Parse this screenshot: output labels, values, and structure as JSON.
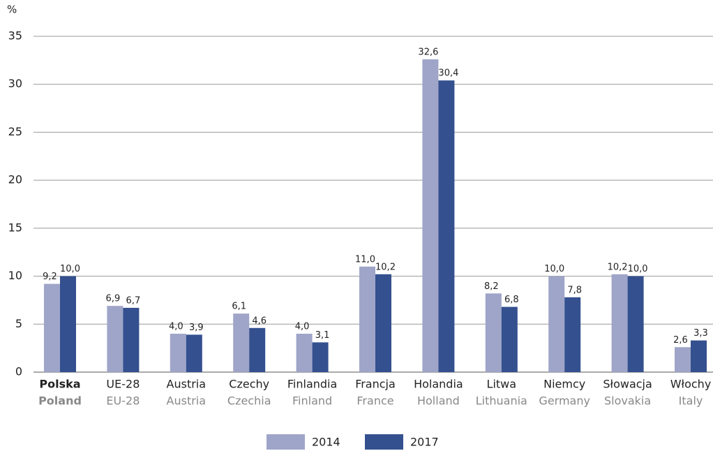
{
  "chart_data": {
    "type": "bar",
    "y_label": "%",
    "categories": [
      "Polska",
      "UE-28",
      "Austria",
      "Czechy",
      "Finlandia",
      "Francja",
      "Holandia",
      "Litwa",
      "Niemcy",
      "Słowacja",
      "Włochy"
    ],
    "category_translations": [
      "Poland",
      "EU-28",
      "Austria",
      "Czechia",
      "Finland",
      "France",
      "Holland",
      "Lithuania",
      "Germany",
      "Slovakia",
      "Italy"
    ],
    "series": [
      {
        "name": "2014",
        "color": "#9fa5c8",
        "values": [
          9.2,
          6.9,
          4.0,
          6.1,
          4.0,
          11.0,
          32.6,
          8.2,
          10.0,
          10.2,
          2.6
        ],
        "value_labels": [
          "9,2",
          "6,9",
          "4,0",
          "6,1",
          "4,0",
          "11,0",
          "32,6",
          "8,2",
          "10,0",
          "10,2",
          "2,6"
        ]
      },
      {
        "name": "2017",
        "color": "#34508f",
        "values": [
          10.0,
          6.7,
          3.9,
          4.6,
          3.1,
          10.2,
          30.4,
          6.8,
          7.8,
          10.0,
          3.3
        ],
        "value_labels": [
          "10,0",
          "6,7",
          "3,9",
          "4,6",
          "3,1",
          "10,2",
          "30,4",
          "6,8",
          "7,8",
          "10,0",
          "3,3"
        ]
      }
    ],
    "ylim": [
      0,
      35
    ],
    "yticks": [
      0,
      5,
      10,
      15,
      20,
      25,
      30,
      35
    ],
    "grid": true
  }
}
